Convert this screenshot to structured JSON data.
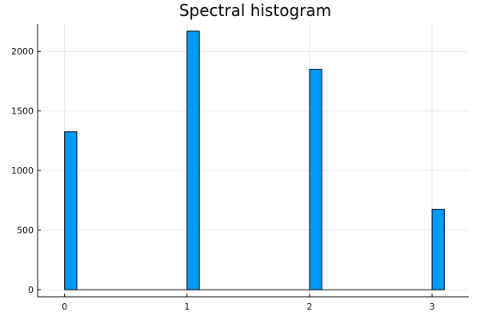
{
  "chart_data": {
    "type": "bar",
    "title": "Spectral histogram",
    "xlabel": "",
    "ylabel": "",
    "bin_width": 0.1,
    "bars": [
      {
        "x_start": 0.0,
        "value": 1325
      },
      {
        "x_start": 1.0,
        "value": 2170
      },
      {
        "x_start": 2.0,
        "value": 1850
      },
      {
        "x_start": 3.0,
        "value": 675
      }
    ],
    "xlim": [
      -0.22,
      3.3
    ],
    "ylim": [
      -60,
      2230
    ],
    "x_ticks": [
      0,
      1,
      2,
      3
    ],
    "x_tick_labels": [
      "0",
      "1",
      "2",
      "3"
    ],
    "y_ticks": [
      0,
      500,
      1000,
      1500,
      2000
    ],
    "y_tick_labels": [
      "0",
      "500",
      "1000",
      "1500",
      "2000"
    ],
    "grid": true,
    "legend": "none",
    "bar_color": "#009af9",
    "edge_color": "#000000"
  }
}
